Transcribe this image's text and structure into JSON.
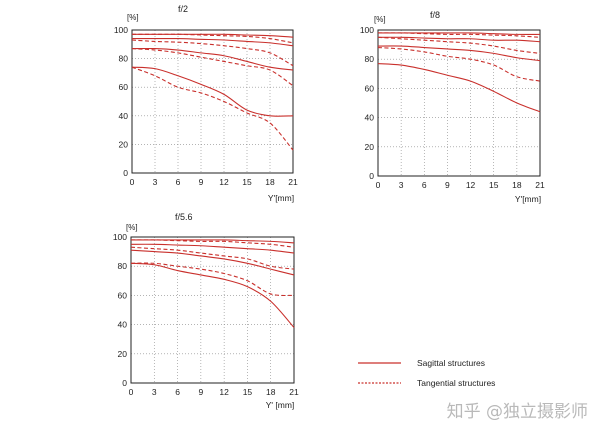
{
  "colors": {
    "sagittal": "#c9302c",
    "tangential": "#c9302c",
    "grid": "#888888",
    "axis": "#222222",
    "text": "#222222"
  },
  "legend": {
    "sagittal": "Sagittal structures",
    "tangential": "Tangential structures"
  },
  "watermark": "知乎 @独立摄影师",
  "chart_data": [
    {
      "type": "line",
      "title": "f/2",
      "xlabel": "Y'[mm]",
      "ylabel": "[%]",
      "xlim": [
        0,
        21
      ],
      "ylim": [
        0,
        100
      ],
      "xticks": [
        0,
        3,
        6,
        9,
        12,
        15,
        18,
        21
      ],
      "yticks": [
        0,
        20,
        40,
        60,
        80,
        100
      ],
      "grid": true,
      "series": [
        {
          "style": "sagittal",
          "x": [
            0,
            3,
            6,
            9,
            12,
            15,
            18,
            21
          ],
          "y": [
            97,
            97,
            97,
            97,
            97,
            96.5,
            96,
            95
          ]
        },
        {
          "style": "tangential",
          "x": [
            0,
            3,
            6,
            9,
            12,
            15,
            18,
            21
          ],
          "y": [
            97,
            97,
            97,
            96.5,
            96,
            95.5,
            94,
            91
          ]
        },
        {
          "style": "sagittal",
          "x": [
            0,
            3,
            6,
            9,
            12,
            15,
            18,
            21
          ],
          "y": [
            94,
            94,
            94,
            93.5,
            93,
            92,
            91,
            89
          ]
        },
        {
          "style": "tangential",
          "x": [
            0,
            3,
            6,
            9,
            12,
            15,
            18,
            21
          ],
          "y": [
            93,
            92,
            91.5,
            90.5,
            89,
            87,
            84,
            75
          ]
        },
        {
          "style": "sagittal",
          "x": [
            0,
            3,
            6,
            9,
            12,
            15,
            18,
            21
          ],
          "y": [
            87,
            87,
            86,
            84,
            82,
            78,
            74,
            72
          ]
        },
        {
          "style": "tangential",
          "x": [
            0,
            3,
            6,
            9,
            12,
            15,
            18,
            21
          ],
          "y": [
            87,
            86,
            84,
            81,
            78,
            75,
            72,
            61
          ]
        },
        {
          "style": "sagittal",
          "x": [
            0,
            3,
            6,
            9,
            12,
            15,
            18,
            21
          ],
          "y": [
            74,
            73,
            68,
            62,
            55,
            44,
            40,
            40
          ]
        },
        {
          "style": "tangential",
          "x": [
            0,
            3,
            6,
            9,
            12,
            15,
            18,
            21
          ],
          "y": [
            74,
            68,
            60,
            56,
            50,
            42,
            35,
            16
          ]
        }
      ]
    },
    {
      "type": "line",
      "title": "f/8",
      "xlabel": "Y'[mm]",
      "ylabel": "[%]",
      "xlim": [
        0,
        21
      ],
      "ylim": [
        0,
        100
      ],
      "xticks": [
        0,
        3,
        6,
        9,
        12,
        15,
        18,
        21
      ],
      "yticks": [
        0,
        20,
        40,
        60,
        80,
        100
      ],
      "grid": true,
      "series": [
        {
          "style": "sagittal",
          "x": [
            0,
            3,
            6,
            9,
            12,
            15,
            18,
            21
          ],
          "y": [
            98,
            98,
            98,
            98,
            98,
            97.5,
            97,
            97
          ]
        },
        {
          "style": "tangential",
          "x": [
            0,
            3,
            6,
            9,
            12,
            15,
            18,
            21
          ],
          "y": [
            98,
            98,
            97.5,
            97,
            97,
            96.5,
            96,
            95
          ]
        },
        {
          "style": "sagittal",
          "x": [
            0,
            3,
            6,
            9,
            12,
            15,
            18,
            21
          ],
          "y": [
            95,
            95,
            94.5,
            94,
            94,
            93,
            93,
            92
          ]
        },
        {
          "style": "tangential",
          "x": [
            0,
            3,
            6,
            9,
            12,
            15,
            18,
            21
          ],
          "y": [
            95,
            94,
            93,
            92,
            91,
            89,
            86,
            84
          ]
        },
        {
          "style": "sagittal",
          "x": [
            0,
            3,
            6,
            9,
            12,
            15,
            18,
            21
          ],
          "y": [
            89,
            89,
            88,
            87,
            86,
            84,
            81,
            79
          ]
        },
        {
          "style": "tangential",
          "x": [
            0,
            3,
            6,
            9,
            12,
            15,
            18,
            21
          ],
          "y": [
            88,
            87,
            85,
            82,
            80,
            76,
            68,
            65
          ]
        },
        {
          "style": "sagittal",
          "x": [
            0,
            3,
            6,
            9,
            12,
            15,
            18,
            21
          ],
          "y": [
            77,
            76,
            73,
            69,
            65,
            58,
            50,
            44
          ]
        }
      ]
    },
    {
      "type": "line",
      "title": "f/5.6",
      "xlabel": "Y' [mm]",
      "ylabel": "[%]",
      "xlim": [
        0,
        21
      ],
      "ylim": [
        0,
        100
      ],
      "xticks": [
        0,
        3,
        6,
        9,
        12,
        15,
        18,
        21
      ],
      "yticks": [
        0,
        20,
        40,
        60,
        80,
        100
      ],
      "grid": true,
      "series": [
        {
          "style": "sagittal",
          "x": [
            0,
            3,
            6,
            9,
            12,
            15,
            18,
            21
          ],
          "y": [
            98,
            98,
            98,
            98,
            98,
            97.5,
            97,
            96
          ]
        },
        {
          "style": "tangential",
          "x": [
            0,
            3,
            6,
            9,
            12,
            15,
            18,
            21
          ],
          "y": [
            98,
            98,
            97.5,
            97,
            97,
            96,
            95,
            93
          ]
        },
        {
          "style": "sagittal",
          "x": [
            0,
            3,
            6,
            9,
            12,
            15,
            18,
            21
          ],
          "y": [
            95,
            95,
            94.5,
            94,
            93,
            92,
            91,
            89
          ]
        },
        {
          "style": "tangential",
          "x": [
            0,
            3,
            6,
            9,
            12,
            15,
            18,
            21
          ],
          "y": [
            93,
            92,
            91,
            89,
            87,
            85,
            80,
            78
          ]
        },
        {
          "style": "sagittal",
          "x": [
            0,
            3,
            6,
            9,
            12,
            15,
            18,
            21
          ],
          "y": [
            91,
            90,
            89,
            87,
            85,
            82,
            78,
            74
          ]
        },
        {
          "style": "tangential",
          "x": [
            0,
            3,
            6,
            9,
            12,
            15,
            18,
            21
          ],
          "y": [
            82,
            82,
            80,
            78,
            75,
            70,
            61,
            60
          ]
        },
        {
          "style": "sagittal",
          "x": [
            0,
            3,
            6,
            9,
            12,
            15,
            18,
            21
          ],
          "y": [
            82,
            81,
            77,
            74,
            71,
            66,
            56,
            38
          ]
        }
      ]
    }
  ]
}
